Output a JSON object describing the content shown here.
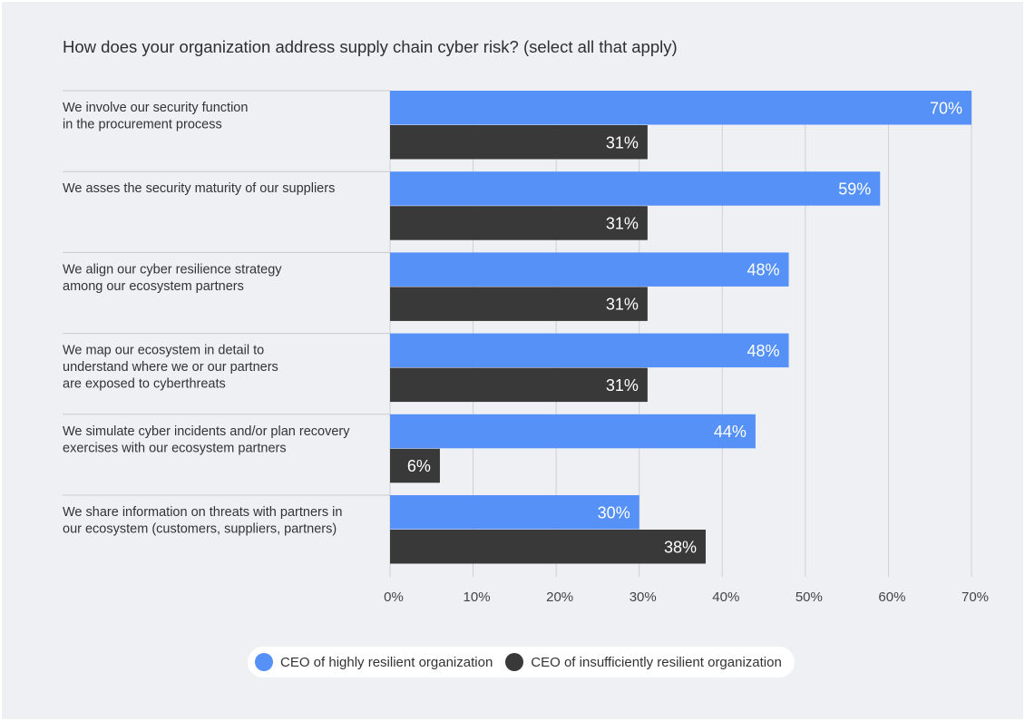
{
  "chart_data": {
    "type": "bar",
    "orientation": "horizontal",
    "title": "How does your organization address supply chain cyber risk? (select all that apply)",
    "categories": [
      [
        "We involve our security function",
        "in the procurement process"
      ],
      [
        "We asses the security maturity of our suppliers"
      ],
      [
        "We align our cyber resilience strategy",
        "among our ecosystem partners"
      ],
      [
        "We map our ecosystem in detail to",
        "understand where we or our partners",
        "are exposed to cyberthreats"
      ],
      [
        "We simulate cyber incidents and/or plan recovery",
        "exercises with our ecosystem partners"
      ],
      [
        "We share information on threats with partners in",
        "our ecosystem (customers, suppliers, partners)"
      ]
    ],
    "series": [
      {
        "name": "CEO of highly resilient organization",
        "color": "#5591f7",
        "values": [
          70,
          59,
          48,
          48,
          44,
          30
        ],
        "labels": [
          "70%",
          "59%",
          "48%",
          "48%",
          "44%",
          "30%"
        ]
      },
      {
        "name": "CEO of insufficiently resilient organization",
        "color": "#393939",
        "values": [
          31,
          31,
          31,
          31,
          6,
          38
        ],
        "labels": [
          "31%",
          "31%",
          "31%",
          "31%",
          "6%",
          "38%"
        ]
      }
    ],
    "xlim": [
      0,
      70
    ],
    "xticks": [
      "0%",
      "10%",
      "20%",
      "30%",
      "40%",
      "50%",
      "60%",
      "70%"
    ],
    "grid": true,
    "legend": "bottom-center"
  }
}
